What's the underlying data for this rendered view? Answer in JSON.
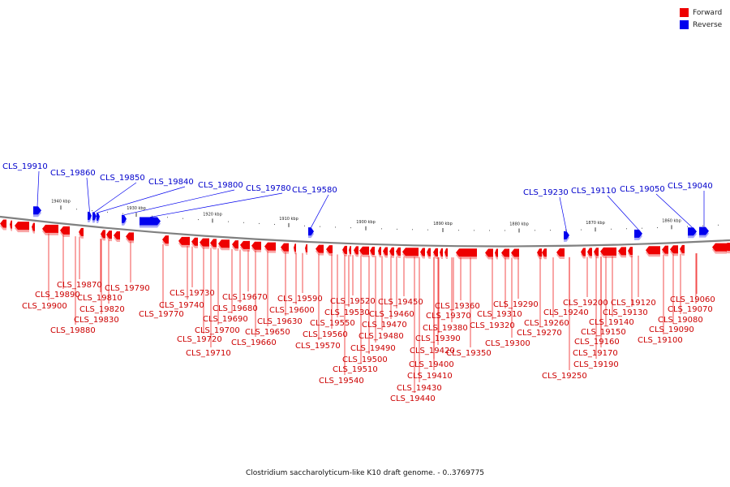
{
  "legend": {
    "forward": {
      "label": "Forward",
      "color": "#ee0000"
    },
    "reverse": {
      "label": "Reverse",
      "color": "#0000ee"
    }
  },
  "caption": "Clostridium saccharolyticum-like K10 draft genome. - 0..3769775",
  "scale_ticks": [
    {
      "kbp": 1940,
      "label": "1940 kbp"
    },
    {
      "kbp": 1930,
      "label": "1930 kbp"
    },
    {
      "kbp": 1920,
      "label": "1920 kbp"
    },
    {
      "kbp": 1910,
      "label": "1910 kbp"
    },
    {
      "kbp": 1900,
      "label": "1900 kbp"
    },
    {
      "kbp": 1890,
      "label": "1890 kbp"
    },
    {
      "kbp": 1880,
      "label": "1880 kbp"
    },
    {
      "kbp": 1870,
      "label": "1870 kbp"
    },
    {
      "kbp": 1860,
      "label": "1860 kbp"
    }
  ],
  "reverse_genes": [
    "CLS_19910",
    "CLS_19860",
    "CLS_19850",
    "CLS_19840",
    "CLS_19800",
    "CLS_19780",
    "CLS_19580",
    "CLS_19230",
    "CLS_19110",
    "CLS_19050",
    "CLS_19040"
  ],
  "forward_genes": [
    "CLS_19870",
    "CLS_19890",
    "CLS_19900",
    "CLS_19880",
    "CLS_19810",
    "CLS_19820",
    "CLS_19830",
    "CLS_19790",
    "CLS_19770",
    "CLS_19730",
    "CLS_19740",
    "CLS_19720",
    "CLS_19710",
    "CLS_19700",
    "CLS_19690",
    "CLS_19680",
    "CLS_19670",
    "CLS_19660",
    "CLS_19650",
    "CLS_19630",
    "CLS_19600",
    "CLS_19590",
    "CLS_19570",
    "CLS_19560",
    "CLS_19550",
    "CLS_19540",
    "CLS_19530",
    "CLS_19520",
    "CLS_19510",
    "CLS_19500",
    "CLS_19490",
    "CLS_19480",
    "CLS_19470",
    "CLS_19460",
    "CLS_19450",
    "CLS_19440",
    "CLS_19430",
    "CLS_19420",
    "CLS_19410",
    "CLS_19400",
    "CLS_19390",
    "CLS_19380",
    "CLS_19370",
    "CLS_19360",
    "CLS_19350",
    "CLS_19320",
    "CLS_19310",
    "CLS_19300",
    "CLS_19290",
    "CLS_19270",
    "CLS_19260",
    "CLS_19250",
    "CLS_19240",
    "CLS_19200",
    "CLS_19190",
    "CLS_19170",
    "CLS_19160",
    "CLS_19150",
    "CLS_19140",
    "CLS_19130",
    "CLS_19120",
    "CLS_19100",
    "CLS_19090",
    "CLS_19080",
    "CLS_19070",
    "CLS_19060"
  ]
}
